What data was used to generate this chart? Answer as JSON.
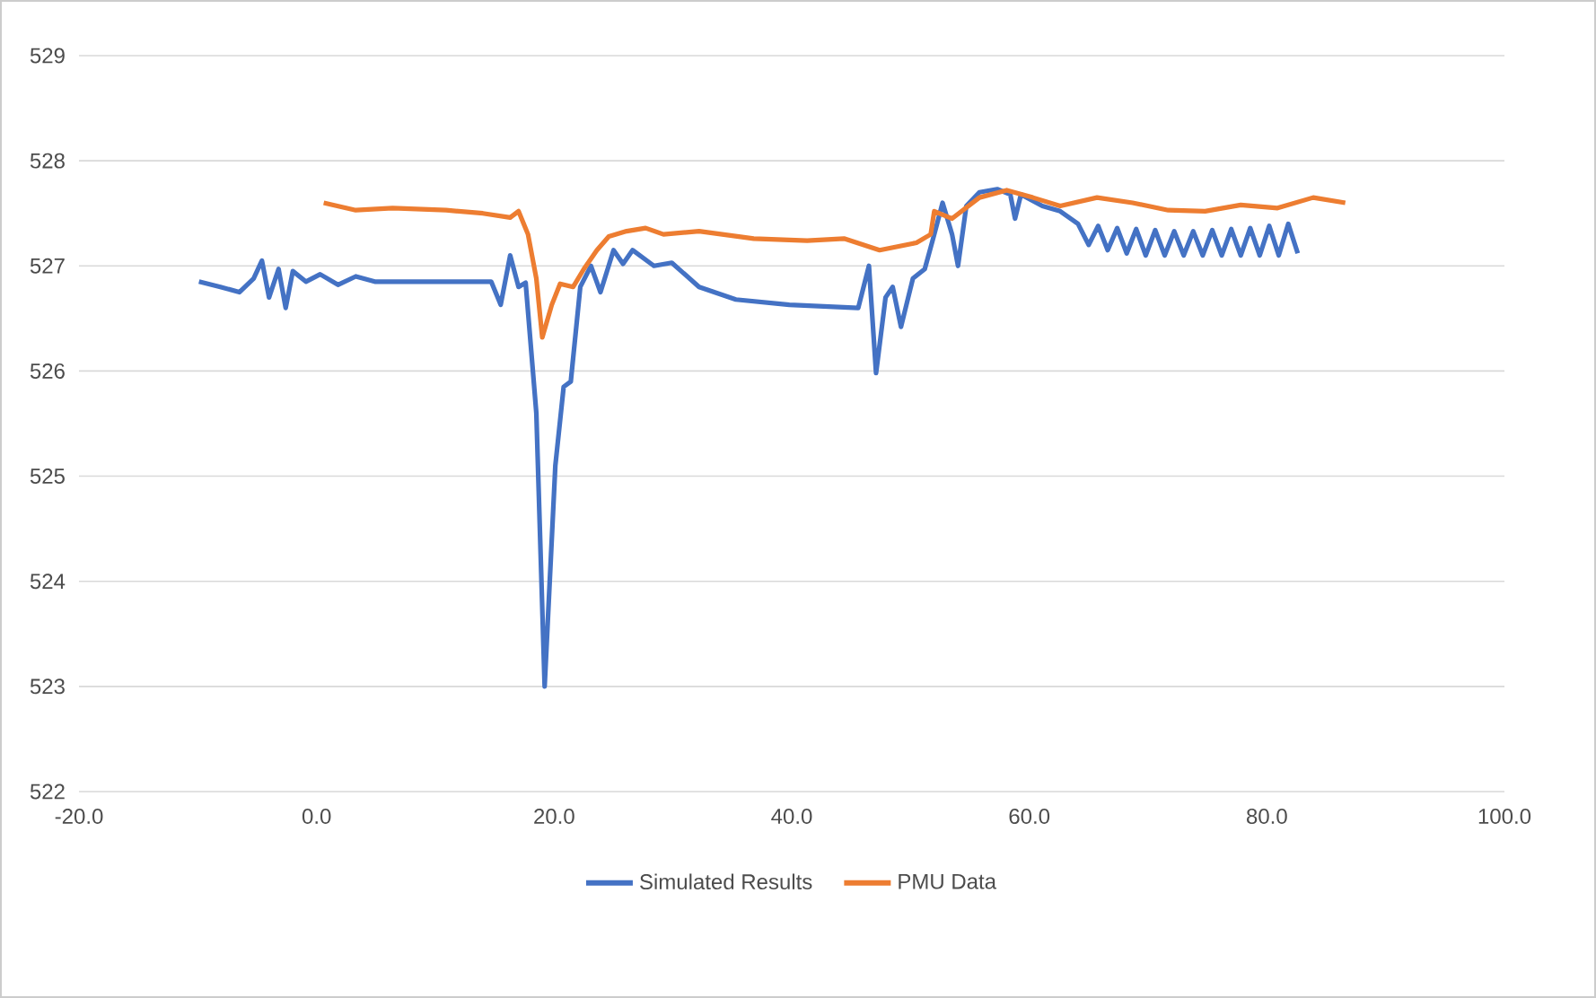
{
  "chart_data": {
    "type": "line",
    "xlim": [
      -20,
      100
    ],
    "ylim": [
      522,
      529
    ],
    "xticks": [
      {
        "value": -20,
        "label": "-20.0"
      },
      {
        "value": 0,
        "label": "0.0"
      },
      {
        "value": 20,
        "label": "20.0"
      },
      {
        "value": 40,
        "label": "40.0"
      },
      {
        "value": 60,
        "label": "60.0"
      },
      {
        "value": 80,
        "label": "80.0"
      },
      {
        "value": 100,
        "label": "100.0"
      }
    ],
    "yticks": [
      522,
      523,
      524,
      525,
      526,
      527,
      528,
      529
    ],
    "grid": "y",
    "legend": "bottom",
    "marker": "none",
    "line_style": "solid",
    "series": [
      {
        "name": "Simulated Results",
        "color": "#4472c4",
        "x": [
          -9.9,
          -8.1,
          -6.5,
          -5.3,
          -4.6,
          -4.0,
          -3.2,
          -2.6,
          -2.0,
          -0.9,
          0.3,
          1.8,
          3.3,
          4.9,
          9.4,
          14.7,
          15.5,
          16.3,
          17.0,
          17.6,
          18.5,
          19.2,
          20.1,
          20.8,
          21.4,
          22.2,
          23.1,
          23.9,
          25.0,
          25.8,
          26.6,
          28.4,
          29.9,
          32.2,
          35.3,
          39.8,
          45.6,
          46.5,
          47.1,
          47.9,
          48.5,
          49.2,
          50.2,
          51.2,
          52.0,
          52.7,
          53.5,
          54.0,
          54.7,
          55.8,
          57.3,
          58.4,
          58.8,
          59.3,
          61.1,
          62.6,
          64.1,
          65.0,
          65.8,
          66.6,
          67.4,
          68.2,
          69.0,
          69.8,
          70.6,
          71.4,
          72.2,
          73.0,
          73.8,
          74.6,
          75.4,
          76.2,
          77.0,
          77.8,
          78.6,
          79.4,
          80.2,
          81.0,
          81.8,
          82.6
        ],
        "values": [
          526.85,
          526.8,
          526.75,
          526.88,
          527.05,
          526.7,
          526.97,
          526.6,
          526.95,
          526.85,
          526.92,
          526.82,
          526.9,
          526.85,
          526.85,
          526.85,
          526.63,
          527.1,
          526.8,
          526.84,
          525.6,
          523.0,
          525.1,
          525.85,
          525.9,
          526.8,
          527.0,
          526.75,
          527.15,
          527.02,
          527.15,
          527.0,
          527.03,
          526.8,
          526.68,
          526.63,
          526.6,
          527.0,
          525.98,
          526.7,
          526.8,
          526.42,
          526.88,
          526.97,
          527.3,
          527.6,
          527.3,
          527.0,
          527.57,
          527.7,
          527.73,
          527.68,
          527.45,
          527.68,
          527.57,
          527.52,
          527.4,
          527.2,
          527.38,
          527.15,
          527.36,
          527.12,
          527.35,
          527.1,
          527.34,
          527.1,
          527.33,
          527.1,
          527.33,
          527.1,
          527.34,
          527.1,
          527.35,
          527.1,
          527.36,
          527.1,
          527.38,
          527.1,
          527.4,
          527.12
        ]
      },
      {
        "name": "PMU Data",
        "color": "#ed7d31",
        "x": [
          0.6,
          3.3,
          6.4,
          10.9,
          14.0,
          16.3,
          17.0,
          17.8,
          18.5,
          19.0,
          19.8,
          20.5,
          21.6,
          22.5,
          23.6,
          24.6,
          26.1,
          27.7,
          29.2,
          32.2,
          36.8,
          41.3,
          44.4,
          47.4,
          50.5,
          51.7,
          52.0,
          53.5,
          55.8,
          58.1,
          60.3,
          62.6,
          65.7,
          68.7,
          71.7,
          74.8,
          77.8,
          80.9,
          83.9,
          86.6
        ],
        "values": [
          527.6,
          527.53,
          527.55,
          527.53,
          527.5,
          527.46,
          527.52,
          527.3,
          526.88,
          526.32,
          526.63,
          526.83,
          526.8,
          526.97,
          527.15,
          527.28,
          527.33,
          527.36,
          527.3,
          527.33,
          527.26,
          527.24,
          527.26,
          527.15,
          527.22,
          527.3,
          527.52,
          527.45,
          527.65,
          527.72,
          527.65,
          527.57,
          527.65,
          527.6,
          527.53,
          527.52,
          527.58,
          527.55,
          527.65,
          527.6
        ]
      }
    ]
  }
}
